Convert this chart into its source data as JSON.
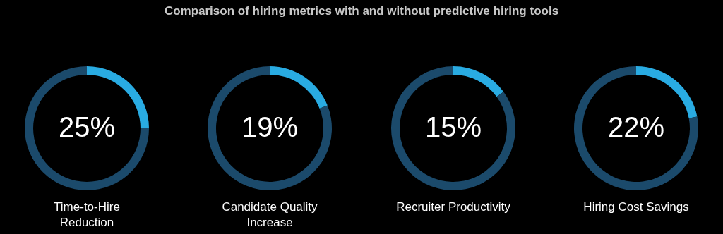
{
  "chart_data": [
    {
      "type": "donut",
      "title": "Comparison of hiring metrics with and without predictive hiring tools",
      "xlabel": "Time-to-Hire Reduction",
      "categories": [
        null,
        null
      ],
      "values": [
        25,
        75
      ],
      "colors": [
        "#29abe2",
        "#1b4a6b"
      ],
      "value_labels": [
        "25%",
        null
      ]
    },
    {
      "type": "donut",
      "xlabel": "Candidate Quality Increase",
      "categories": [
        null,
        null
      ],
      "values": [
        19,
        81
      ],
      "colors": [
        "#29abe2",
        "#1b4a6b"
      ],
      "value_labels": [
        "19%",
        null
      ]
    },
    {
      "type": "donut",
      "xlabel": "Recruiter Productivity",
      "categories": [
        null,
        null
      ],
      "values": [
        15,
        85
      ],
      "colors": [
        "#29abe2",
        "#1b4a6b"
      ],
      "value_labels": [
        "15%",
        null
      ]
    },
    {
      "type": "donut",
      "xlabel": "Hiring Cost Savings",
      "categories": [
        null,
        null
      ],
      "values": [
        22,
        78
      ],
      "colors": [
        "#29abe2",
        "#1b4a6b"
      ],
      "value_labels": [
        "22%",
        null
      ]
    }
  ]
}
